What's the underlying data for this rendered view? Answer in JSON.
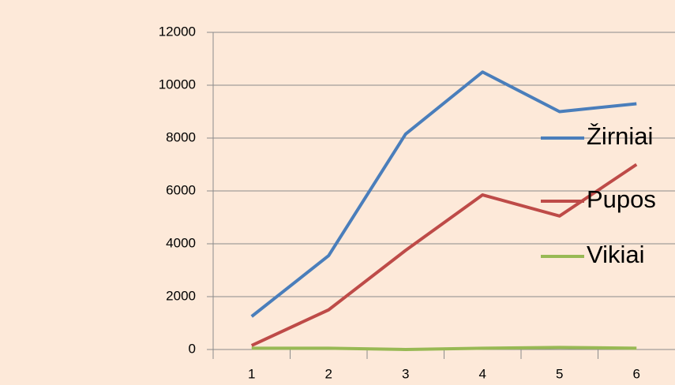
{
  "chart_data": {
    "type": "line",
    "categories": [
      "1",
      "2",
      "3",
      "4",
      "5",
      "6"
    ],
    "series": [
      {
        "name": "Žirniai",
        "color": "#4a7ebb",
        "values": [
          1250,
          3550,
          8150,
          10500,
          9000,
          9300
        ]
      },
      {
        "name": "Pupos",
        "color": "#be4b48",
        "values": [
          150,
          1500,
          3750,
          5850,
          5050,
          7000
        ]
      },
      {
        "name": "Vikiai",
        "color": "#98b954",
        "values": [
          50,
          50,
          0,
          50,
          80,
          50
        ]
      }
    ],
    "ylim": [
      0,
      12000
    ],
    "yticks": [
      0,
      2000,
      4000,
      6000,
      8000,
      10000,
      12000
    ],
    "grid": true,
    "legend": "right",
    "background": "#fde9d9"
  }
}
